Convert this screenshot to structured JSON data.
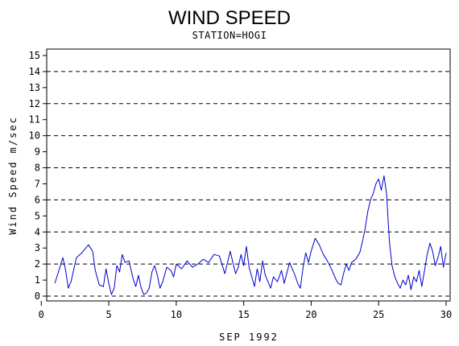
{
  "chart_data": {
    "type": "line",
    "title": "WIND SPEED",
    "subtitle": "STATION=HOGI",
    "xlabel": "SEP 1992",
    "ylabel": "Wind Speed m/sec",
    "xlim": [
      0.4,
      30.3
    ],
    "ylim": [
      -0.3,
      15.4
    ],
    "x_ticks": [
      0,
      5,
      10,
      15,
      20,
      25,
      30
    ],
    "y_ticks": [
      0,
      1,
      2,
      3,
      4,
      5,
      6,
      7,
      8,
      9,
      10,
      11,
      12,
      13,
      14,
      15
    ],
    "reference_lines": [
      0,
      2,
      4,
      6,
      8,
      10,
      12,
      14
    ],
    "grid": "dashed horizontal reference lines at even values",
    "colors": {
      "series": "#0000cc",
      "axis": "#000000",
      "reference": "#000000"
    },
    "series": [
      {
        "x": [
          1.0,
          1.3,
          1.6,
          1.8,
          2.0,
          2.2,
          2.6,
          3.0,
          3.5,
          3.8,
          4.0,
          4.3,
          4.6,
          4.8,
          5.0,
          5.2,
          5.4,
          5.6,
          5.8,
          6.0,
          6.2,
          6.5,
          6.8,
          7.0,
          7.2,
          7.4,
          7.6,
          7.8,
          8.0,
          8.2,
          8.4,
          8.6,
          8.8,
          9.0,
          9.3,
          9.6,
          9.8,
          10.0,
          10.4,
          10.8,
          11.2,
          11.6,
          12.0,
          12.4,
          12.8,
          13.2,
          13.6,
          14.0,
          14.2,
          14.4,
          14.6,
          14.8,
          15.0,
          15.2,
          15.4,
          15.6,
          15.8,
          16.0,
          16.2,
          16.4,
          16.6,
          16.8,
          17.0,
          17.2,
          17.5,
          17.8,
          18.0,
          18.4,
          18.8,
          19.0,
          19.2,
          19.4,
          19.6,
          19.8,
          20.0,
          20.3,
          20.6,
          20.9,
          21.2,
          21.5,
          21.8,
          22.0,
          22.2,
          22.4,
          22.6,
          22.8,
          23.0,
          23.3,
          23.6,
          23.8,
          24.0,
          24.2,
          24.4,
          24.6,
          24.8,
          25.0,
          25.2,
          25.4,
          25.5,
          25.6,
          25.7,
          25.8,
          25.9,
          26.0,
          26.2,
          26.4,
          26.6,
          26.8,
          27.0,
          27.2,
          27.4,
          27.6,
          27.8,
          28.0,
          28.2,
          28.4,
          28.6,
          28.8,
          29.0,
          29.2,
          29.4,
          29.6,
          29.8,
          30.0
        ],
        "y": [
          0.8,
          1.6,
          2.4,
          1.6,
          0.5,
          0.9,
          2.4,
          2.7,
          3.2,
          2.8,
          1.6,
          0.7,
          0.6,
          1.7,
          0.8,
          0.1,
          0.5,
          1.9,
          1.5,
          2.6,
          2.1,
          2.2,
          1.1,
          0.6,
          1.3,
          0.5,
          0.1,
          0.2,
          0.5,
          1.5,
          1.9,
          1.3,
          0.5,
          0.9,
          1.8,
          1.6,
          1.2,
          2.0,
          1.7,
          2.2,
          1.8,
          2.0,
          2.3,
          2.1,
          2.6,
          2.5,
          1.4,
          2.8,
          2.1,
          1.4,
          1.8,
          2.6,
          1.9,
          3.1,
          1.8,
          1.2,
          0.6,
          1.7,
          0.9,
          2.2,
          1.3,
          0.9,
          0.5,
          1.2,
          0.9,
          1.6,
          0.8,
          2.1,
          1.3,
          0.8,
          0.5,
          1.8,
          2.7,
          2.1,
          2.8,
          3.6,
          3.2,
          2.6,
          2.2,
          1.7,
          1.1,
          0.8,
          0.7,
          1.4,
          2.0,
          1.6,
          2.1,
          2.3,
          2.7,
          3.4,
          4.2,
          5.3,
          6.0,
          6.4,
          7.0,
          7.3,
          6.6,
          7.5,
          6.9,
          6.3,
          4.8,
          3.4,
          2.6,
          1.9,
          1.2,
          0.8,
          0.5,
          1.0,
          0.7,
          1.3,
          0.4,
          1.2,
          0.9,
          1.6,
          0.6,
          1.6,
          2.6,
          3.3,
          2.8,
          1.9,
          2.4,
          3.1,
          1.8,
          2.7
        ]
      }
    ]
  }
}
